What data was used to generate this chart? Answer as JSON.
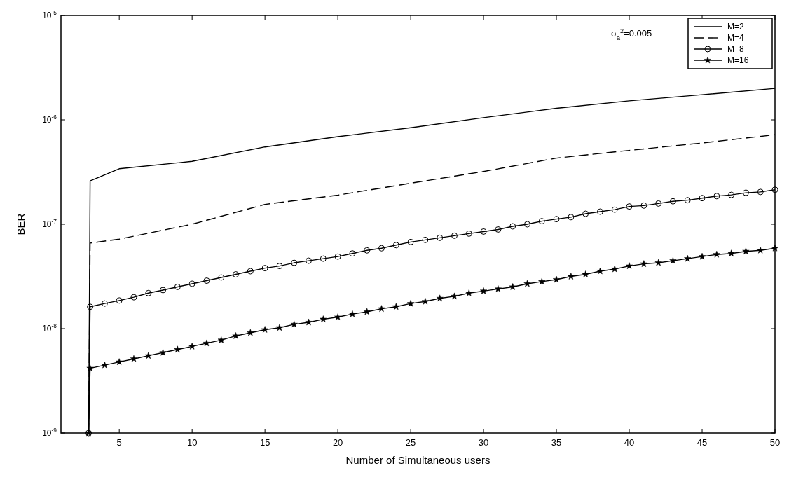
{
  "chart_data": {
    "type": "line",
    "xlabel": "Number of Simultaneous users",
    "ylabel": "BER",
    "log": "y",
    "xlim": [
      1,
      50
    ],
    "xticks": [
      5,
      10,
      15,
      20,
      25,
      30,
      35,
      40,
      45,
      50
    ],
    "ylim": [
      1e-09,
      1e-05
    ],
    "yticks": [
      {
        "value": 1e-09,
        "label": "10$^{-9}$"
      },
      {
        "value": 1e-08,
        "label": "10$^{-8}$"
      },
      {
        "value": 1e-07,
        "label": "10$^{-7}$"
      },
      {
        "value": 1e-06,
        "label": "10$^{-6}$"
      },
      {
        "value": 1e-05,
        "label": "10$^{-5}$"
      }
    ],
    "grid": false,
    "legend": "top right",
    "annotations": [
      "σ$_{a}$$^{2}$=0.005"
    ],
    "series": [
      {
        "name": "M=2",
        "color": "#000000",
        "line_style": "solid",
        "marker": "none",
        "x": [
          2.9,
          3,
          5,
          10,
          15,
          20,
          25,
          30,
          35,
          40,
          45,
          50
        ],
        "values": [
          1e-09,
          2.6e-07,
          3.4e-07,
          4e-07,
          5.5e-07,
          6.9e-07,
          8.4e-07,
          1.05e-06,
          1.29e-06,
          1.52e-06,
          1.74e-06,
          2e-06
        ]
      },
      {
        "name": "M=4",
        "color": "#000000",
        "line_style": "dashed",
        "marker": "none",
        "x": [
          2.9,
          3,
          5,
          10,
          15,
          20,
          25,
          30,
          35,
          40,
          45,
          50
        ],
        "values": [
          1e-09,
          6.6e-08,
          7.2e-08,
          1e-07,
          1.55e-07,
          1.9e-07,
          2.47e-07,
          3.2e-07,
          4.3e-07,
          5.1e-07,
          6e-07,
          7.2e-07
        ]
      },
      {
        "name": "M=8",
        "color": "#000000",
        "line_style": "solid",
        "marker": "circle",
        "x": [
          2.9,
          3,
          4,
          5,
          6,
          7,
          8,
          9,
          10,
          11,
          12,
          13,
          14,
          15,
          16,
          17,
          18,
          19,
          20,
          21,
          22,
          23,
          24,
          25,
          26,
          27,
          28,
          29,
          30,
          31,
          32,
          33,
          34,
          35,
          36,
          37,
          38,
          39,
          40,
          41,
          42,
          43,
          44,
          45,
          46,
          47,
          48,
          49,
          50
        ],
        "values": [
          1e-09,
          1.62e-08,
          1.74e-08,
          1.86e-08,
          2e-08,
          2.19e-08,
          2.34e-08,
          2.51e-08,
          2.69e-08,
          2.88e-08,
          3.09e-08,
          3.31e-08,
          3.55e-08,
          3.8e-08,
          3.98e-08,
          4.27e-08,
          4.47e-08,
          4.68e-08,
          4.9e-08,
          5.25e-08,
          5.62e-08,
          5.89e-08,
          6.31e-08,
          6.76e-08,
          7.08e-08,
          7.41e-08,
          7.76e-08,
          8.13e-08,
          8.51e-08,
          8.91e-08,
          9.55e-08,
          1e-07,
          1.07e-07,
          1.12e-07,
          1.17e-07,
          1.26e-07,
          1.32e-07,
          1.38e-07,
          1.48e-07,
          1.51e-07,
          1.58e-07,
          1.66e-07,
          1.7e-07,
          1.78e-07,
          1.86e-07,
          1.91e-07,
          2e-07,
          2.04e-07,
          2.14e-07
        ]
      },
      {
        "name": "M=16",
        "color": "#000000",
        "line_style": "solid",
        "marker": "star",
        "x": [
          2.9,
          3,
          4,
          5,
          6,
          7,
          8,
          9,
          10,
          11,
          12,
          13,
          14,
          15,
          16,
          17,
          18,
          19,
          20,
          21,
          22,
          23,
          24,
          25,
          26,
          27,
          28,
          29,
          30,
          31,
          32,
          33,
          34,
          35,
          36,
          37,
          38,
          39,
          40,
          41,
          42,
          43,
          44,
          45,
          46,
          47,
          48,
          49,
          50
        ],
        "values": [
          1e-09,
          4.17e-09,
          4.47e-09,
          4.79e-09,
          5.13e-09,
          5.5e-09,
          5.89e-09,
          6.31e-09,
          6.76e-09,
          7.24e-09,
          7.76e-09,
          8.51e-09,
          9.12e-09,
          9.77e-09,
          1.02e-08,
          1.1e-08,
          1.15e-08,
          1.23e-08,
          1.29e-08,
          1.38e-08,
          1.45e-08,
          1.55e-08,
          1.62e-08,
          1.74e-08,
          1.82e-08,
          1.95e-08,
          2.04e-08,
          2.19e-08,
          2.29e-08,
          2.4e-08,
          2.51e-08,
          2.69e-08,
          2.82e-08,
          2.95e-08,
          3.16e-08,
          3.31e-08,
          3.55e-08,
          3.72e-08,
          3.98e-08,
          4.17e-08,
          4.27e-08,
          4.47e-08,
          4.68e-08,
          4.9e-08,
          5.13e-08,
          5.25e-08,
          5.5e-08,
          5.62e-08,
          5.89e-08
        ]
      }
    ]
  }
}
